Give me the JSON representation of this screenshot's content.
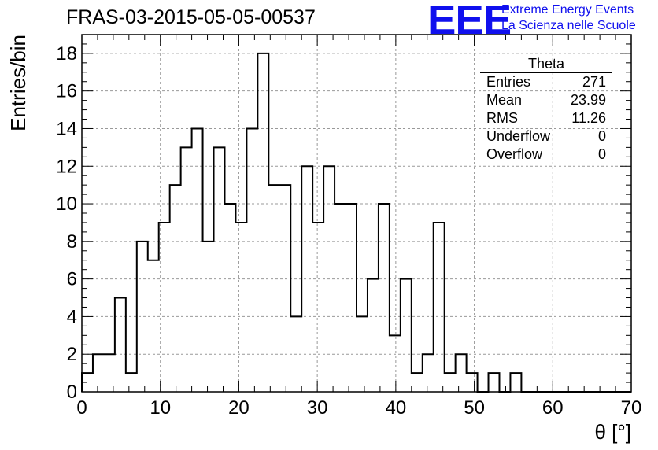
{
  "header": {
    "title": "FRAS-03-2015-05-05-00537",
    "logo_text": "EEE",
    "logo_line1": "Extreme Energy Events",
    "logo_line2": "La Scienza nelle Scuole",
    "logo_color": "#1010ee"
  },
  "stats_box": {
    "name": "Theta",
    "rows": [
      {
        "label": "Entries",
        "value": "271"
      },
      {
        "label": "Mean",
        "value": "23.99"
      },
      {
        "label": "RMS",
        "value": "11.26"
      },
      {
        "label": "Underflow",
        "value": "0"
      },
      {
        "label": "Overflow",
        "value": "0"
      }
    ]
  },
  "chart_data": {
    "type": "histogram",
    "xlabel": "θ [°]",
    "ylabel": "Entries/bin",
    "xlim": [
      0,
      70
    ],
    "ylim": [
      0,
      19
    ],
    "xticks": [
      0,
      10,
      20,
      30,
      40,
      50,
      60,
      70
    ],
    "yticks": [
      0,
      2,
      4,
      6,
      8,
      10,
      12,
      14,
      16,
      18
    ],
    "grid": true,
    "bin_width": 1.4,
    "bin_start": 0,
    "values": [
      1,
      2,
      2,
      5,
      1,
      8,
      7,
      9,
      11,
      13,
      14,
      8,
      13,
      10,
      9,
      14,
      18,
      11,
      11,
      4,
      12,
      9,
      12,
      10,
      10,
      4,
      6,
      10,
      3,
      6,
      1,
      2,
      9,
      1,
      2,
      1,
      0,
      1,
      0,
      1,
      0,
      0,
      0,
      0,
      0,
      0,
      0,
      0,
      0,
      0
    ]
  }
}
